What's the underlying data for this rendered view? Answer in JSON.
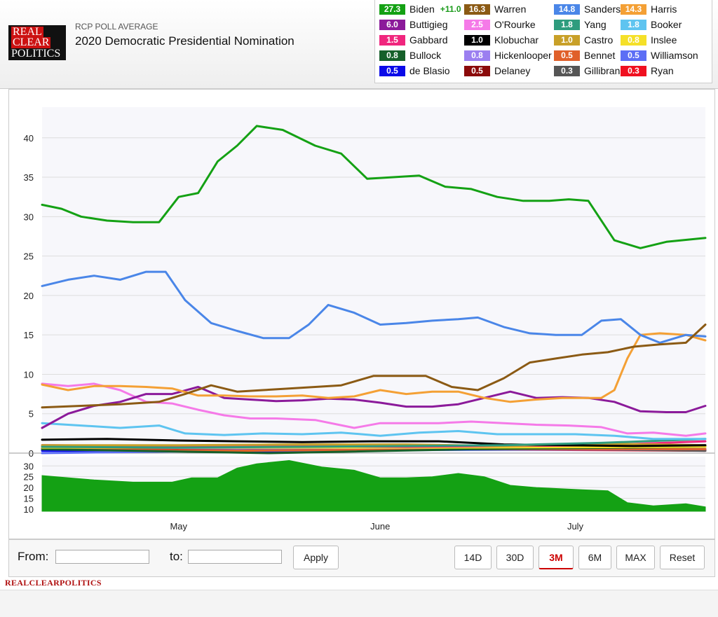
{
  "header": {
    "logo": {
      "line1": "REAL",
      "line2": "CLEAR",
      "line3": "POLITICS"
    },
    "subtitle": "RCP POLL AVERAGE",
    "title": "2020 Democratic Presidential Nomination"
  },
  "legend": [
    {
      "name": "Biden",
      "value": "27.3",
      "spread": "+11.0",
      "color": "#14a114",
      "text": "#ffffff"
    },
    {
      "name": "Warren",
      "value": "16.3",
      "color": "#8b5a14",
      "text": "#ffffff"
    },
    {
      "name": "Sanders",
      "value": "14.8",
      "color": "#4a86e8",
      "text": "#ffffff"
    },
    {
      "name": "Harris",
      "value": "14.3",
      "color": "#f4a035",
      "text": "#ffffff"
    },
    {
      "name": "Buttigieg",
      "value": "6.0",
      "color": "#8b1a9a",
      "text": "#ffffff"
    },
    {
      "name": "O'Rourke",
      "value": "2.5",
      "color": "#f57ae8",
      "text": "#ffffff"
    },
    {
      "name": "Yang",
      "value": "1.8",
      "color": "#2e9c7e",
      "text": "#ffffff"
    },
    {
      "name": "Booker",
      "value": "1.8",
      "color": "#5ec4f0",
      "text": "#ffffff"
    },
    {
      "name": "Gabbard",
      "value": "1.5",
      "color": "#f0267e",
      "text": "#ffffff"
    },
    {
      "name": "Klobuchar",
      "value": "1.0",
      "color": "#000000",
      "text": "#ffffff"
    },
    {
      "name": "Castro",
      "value": "1.0",
      "color": "#c8a028",
      "text": "#ffffff"
    },
    {
      "name": "Inslee",
      "value": "0.8",
      "color": "#f5e028",
      "text": "#ffffff"
    },
    {
      "name": "Bullock",
      "value": "0.8",
      "color": "#16602a",
      "text": "#ffffff"
    },
    {
      "name": "Hickenlooper",
      "value": "0.8",
      "color": "#9b7ff0",
      "text": "#ffffff"
    },
    {
      "name": "Bennet",
      "value": "0.5",
      "color": "#e0602a",
      "text": "#ffffff"
    },
    {
      "name": "Williamson",
      "value": "0.5",
      "color": "#5c6ef5",
      "text": "#ffffff"
    },
    {
      "name": "de Blasio",
      "value": "0.5",
      "color": "#0a0ae8",
      "text": "#ffffff"
    },
    {
      "name": "Delaney",
      "value": "0.5",
      "color": "#8b0a0a",
      "text": "#ffffff"
    },
    {
      "name": "Gillibrand",
      "value": "0.3",
      "color": "#555555",
      "text": "#ffffff"
    },
    {
      "name": "Ryan",
      "value": "0.3",
      "color": "#f01020",
      "text": "#ffffff"
    }
  ],
  "chart_data": {
    "type": "line",
    "x_range": [
      "2019-04-10",
      "2019-07-21"
    ],
    "x_ticks": [
      {
        "date": "2019-05-01",
        "label": "May"
      },
      {
        "date": "2019-06-01",
        "label": "June"
      },
      {
        "date": "2019-07-01",
        "label": "July"
      }
    ],
    "ylim": [
      0,
      43
    ],
    "y_ticks": [
      0,
      5,
      10,
      15,
      20,
      25,
      30,
      35,
      40
    ],
    "grid": true,
    "series": [
      {
        "name": "Biden",
        "color": "#14a114",
        "x": [
          "2019-04-10",
          "2019-04-13",
          "2019-04-16",
          "2019-04-20",
          "2019-04-24",
          "2019-04-28",
          "2019-05-01",
          "2019-05-04",
          "2019-05-07",
          "2019-05-10",
          "2019-05-13",
          "2019-05-17",
          "2019-05-22",
          "2019-05-26",
          "2019-05-30",
          "2019-06-03",
          "2019-06-07",
          "2019-06-11",
          "2019-06-15",
          "2019-06-19",
          "2019-06-23",
          "2019-06-27",
          "2019-06-30",
          "2019-07-03",
          "2019-07-07",
          "2019-07-11",
          "2019-07-15",
          "2019-07-21"
        ],
        "y": [
          31.5,
          31.0,
          30.0,
          29.5,
          29.3,
          29.3,
          32.5,
          33.0,
          37.0,
          39.0,
          41.5,
          41.0,
          39.0,
          38.0,
          34.8,
          35.0,
          35.2,
          33.8,
          33.5,
          32.5,
          32.0,
          32.0,
          32.2,
          32.0,
          27.0,
          26.0,
          26.8,
          27.3
        ]
      },
      {
        "name": "Warren",
        "color": "#8b5a14",
        "x": [
          "2019-04-10",
          "2019-04-16",
          "2019-04-22",
          "2019-04-28",
          "2019-05-02",
          "2019-05-06",
          "2019-05-10",
          "2019-05-14",
          "2019-05-18",
          "2019-05-22",
          "2019-05-26",
          "2019-05-31",
          "2019-06-04",
          "2019-06-08",
          "2019-06-12",
          "2019-06-16",
          "2019-06-20",
          "2019-06-24",
          "2019-06-28",
          "2019-07-02",
          "2019-07-06",
          "2019-07-10",
          "2019-07-14",
          "2019-07-18",
          "2019-07-21"
        ],
        "y": [
          5.8,
          6.0,
          6.2,
          6.5,
          7.5,
          8.6,
          7.8,
          8.0,
          8.2,
          8.4,
          8.6,
          9.8,
          9.8,
          9.8,
          8.4,
          8.0,
          9.5,
          11.5,
          12.0,
          12.5,
          12.8,
          13.5,
          13.8,
          14.0,
          16.3
        ]
      },
      {
        "name": "Sanders",
        "color": "#4a86e8",
        "x": [
          "2019-04-10",
          "2019-04-14",
          "2019-04-18",
          "2019-04-22",
          "2019-04-26",
          "2019-04-29",
          "2019-05-02",
          "2019-05-06",
          "2019-05-10",
          "2019-05-14",
          "2019-05-18",
          "2019-05-21",
          "2019-05-24",
          "2019-05-28",
          "2019-06-01",
          "2019-06-05",
          "2019-06-09",
          "2019-06-13",
          "2019-06-16",
          "2019-06-20",
          "2019-06-24",
          "2019-06-28",
          "2019-07-02",
          "2019-07-05",
          "2019-07-08",
          "2019-07-11",
          "2019-07-14",
          "2019-07-18",
          "2019-07-21"
        ],
        "y": [
          21.2,
          22.0,
          22.5,
          22.0,
          23.0,
          23.0,
          19.4,
          16.5,
          15.5,
          14.6,
          14.6,
          16.3,
          18.8,
          17.8,
          16.3,
          16.5,
          16.8,
          17.0,
          17.2,
          16.0,
          15.2,
          15.0,
          15.0,
          16.8,
          17.0,
          15.0,
          14.0,
          15.0,
          14.8
        ]
      },
      {
        "name": "Harris",
        "color": "#f4a035",
        "x": [
          "2019-04-10",
          "2019-04-14",
          "2019-04-18",
          "2019-04-22",
          "2019-04-26",
          "2019-04-30",
          "2019-05-04",
          "2019-05-08",
          "2019-05-12",
          "2019-05-16",
          "2019-05-20",
          "2019-05-24",
          "2019-05-28",
          "2019-06-01",
          "2019-06-05",
          "2019-06-09",
          "2019-06-13",
          "2019-06-17",
          "2019-06-21",
          "2019-06-25",
          "2019-06-29",
          "2019-07-02",
          "2019-07-05",
          "2019-07-07",
          "2019-07-09",
          "2019-07-11",
          "2019-07-14",
          "2019-07-18",
          "2019-07-21"
        ],
        "y": [
          8.7,
          8.0,
          8.5,
          8.5,
          8.4,
          8.2,
          7.3,
          7.3,
          7.2,
          7.2,
          7.3,
          7.0,
          7.2,
          8.0,
          7.5,
          7.8,
          7.8,
          7.0,
          6.5,
          6.8,
          7.0,
          7.0,
          7.0,
          8.0,
          12.0,
          15.0,
          15.2,
          15.0,
          14.3
        ]
      },
      {
        "name": "Buttigieg",
        "color": "#8b1a9a",
        "x": [
          "2019-04-10",
          "2019-04-14",
          "2019-04-18",
          "2019-04-22",
          "2019-04-26",
          "2019-04-30",
          "2019-05-04",
          "2019-05-08",
          "2019-05-12",
          "2019-05-16",
          "2019-05-20",
          "2019-05-24",
          "2019-05-28",
          "2019-06-01",
          "2019-06-05",
          "2019-06-09",
          "2019-06-13",
          "2019-06-17",
          "2019-06-21",
          "2019-06-25",
          "2019-06-29",
          "2019-07-03",
          "2019-07-07",
          "2019-07-11",
          "2019-07-15",
          "2019-07-18",
          "2019-07-21"
        ],
        "y": [
          3.2,
          5.0,
          6.0,
          6.5,
          7.5,
          7.5,
          8.4,
          7.0,
          6.8,
          6.6,
          6.7,
          6.9,
          6.8,
          6.4,
          5.9,
          5.9,
          6.2,
          7.0,
          7.8,
          7.0,
          7.1,
          7.0,
          6.5,
          5.3,
          5.2,
          5.2,
          6.0
        ]
      },
      {
        "name": "O'Rourke",
        "color": "#f57ae8",
        "x": [
          "2019-04-10",
          "2019-04-14",
          "2019-04-18",
          "2019-04-22",
          "2019-04-26",
          "2019-04-30",
          "2019-05-04",
          "2019-05-08",
          "2019-05-12",
          "2019-05-16",
          "2019-05-22",
          "2019-05-28",
          "2019-06-01",
          "2019-06-05",
          "2019-06-10",
          "2019-06-15",
          "2019-06-20",
          "2019-06-25",
          "2019-06-30",
          "2019-07-05",
          "2019-07-09",
          "2019-07-13",
          "2019-07-18",
          "2019-07-21"
        ],
        "y": [
          8.8,
          8.5,
          8.8,
          8.0,
          6.5,
          6.3,
          5.5,
          4.8,
          4.4,
          4.4,
          4.2,
          3.2,
          3.8,
          3.8,
          3.8,
          4.0,
          3.8,
          3.6,
          3.5,
          3.3,
          2.5,
          2.6,
          2.2,
          2.5
        ]
      },
      {
        "name": "Booker",
        "color": "#5ec4f0",
        "x": [
          "2019-04-10",
          "2019-04-16",
          "2019-04-22",
          "2019-04-28",
          "2019-05-02",
          "2019-05-08",
          "2019-05-14",
          "2019-05-20",
          "2019-05-26",
          "2019-06-01",
          "2019-06-07",
          "2019-06-13",
          "2019-06-19",
          "2019-06-25",
          "2019-07-01",
          "2019-07-07",
          "2019-07-13",
          "2019-07-21"
        ],
        "y": [
          3.8,
          3.5,
          3.2,
          3.5,
          2.5,
          2.3,
          2.5,
          2.4,
          2.6,
          2.2,
          2.6,
          2.8,
          2.4,
          2.4,
          2.4,
          2.2,
          1.8,
          1.8
        ]
      },
      {
        "name": "Yang",
        "color": "#2e9c7e",
        "x": [
          "2019-04-10",
          "2019-05-01",
          "2019-05-20",
          "2019-06-05",
          "2019-06-20",
          "2019-07-05",
          "2019-07-21"
        ],
        "y": [
          0.8,
          0.7,
          0.8,
          0.9,
          1.0,
          1.3,
          1.8
        ]
      },
      {
        "name": "Klobuchar",
        "color": "#000000",
        "x": [
          "2019-04-10",
          "2019-04-20",
          "2019-05-01",
          "2019-05-10",
          "2019-05-20",
          "2019-05-31",
          "2019-06-10",
          "2019-06-20",
          "2019-06-30",
          "2019-07-10",
          "2019-07-21"
        ],
        "y": [
          1.7,
          1.8,
          1.6,
          1.5,
          1.4,
          1.5,
          1.5,
          1.1,
          1.0,
          0.9,
          1.0
        ]
      },
      {
        "name": "Castro",
        "color": "#c8a028",
        "x": [
          "2019-04-10",
          "2019-05-01",
          "2019-05-20",
          "2019-06-05",
          "2019-06-20",
          "2019-07-05",
          "2019-07-21"
        ],
        "y": [
          1.0,
          1.0,
          1.1,
          1.1,
          0.9,
          1.2,
          1.0
        ]
      },
      {
        "name": "Gabbard",
        "color": "#f0267e",
        "x": [
          "2019-04-10",
          "2019-05-01",
          "2019-05-20",
          "2019-06-05",
          "2019-06-20",
          "2019-07-05",
          "2019-07-21"
        ],
        "y": [
          1.0,
          0.9,
          0.9,
          0.8,
          0.9,
          1.0,
          1.5
        ]
      },
      {
        "name": "Inslee",
        "color": "#f5e028",
        "x": [
          "2019-04-10",
          "2019-05-10",
          "2019-06-10",
          "2019-07-21"
        ],
        "y": [
          0.7,
          0.7,
          0.7,
          0.8
        ]
      },
      {
        "name": "Bullock",
        "color": "#16602a",
        "x": [
          "2019-04-10",
          "2019-05-15",
          "2019-06-15",
          "2019-07-21"
        ],
        "y": [
          0.5,
          0.0,
          0.5,
          0.8
        ]
      },
      {
        "name": "Hickenlooper",
        "color": "#9b7ff0",
        "x": [
          "2019-04-10",
          "2019-05-10",
          "2019-06-10",
          "2019-07-21"
        ],
        "y": [
          0.8,
          0.6,
          0.7,
          0.8
        ]
      },
      {
        "name": "Bennet",
        "color": "#e0602a",
        "x": [
          "2019-04-10",
          "2019-05-10",
          "2019-06-10",
          "2019-07-21"
        ],
        "y": [
          0.5,
          0.3,
          0.5,
          0.5
        ]
      },
      {
        "name": "Williamson",
        "color": "#5c6ef5",
        "x": [
          "2019-04-10",
          "2019-05-10",
          "2019-06-10",
          "2019-07-21"
        ],
        "y": [
          0.0,
          0.3,
          0.4,
          0.5
        ]
      },
      {
        "name": "de Blasio",
        "color": "#0a0ae8",
        "x": [
          "2019-04-10",
          "2019-05-16",
          "2019-06-10",
          "2019-07-21"
        ],
        "y": [
          0.3,
          0.2,
          0.7,
          0.5
        ]
      },
      {
        "name": "Delaney",
        "color": "#8b0a0a",
        "x": [
          "2019-04-10",
          "2019-05-10",
          "2019-06-10",
          "2019-07-21"
        ],
        "y": [
          0.5,
          0.4,
          0.5,
          0.5
        ]
      },
      {
        "name": "Gillibrand",
        "color": "#555555",
        "x": [
          "2019-04-10",
          "2019-05-10",
          "2019-06-10",
          "2019-07-21"
        ],
        "y": [
          1.0,
          0.8,
          0.7,
          0.3
        ]
      },
      {
        "name": "Ryan",
        "color": "#f01020",
        "x": [
          "2019-04-10",
          "2019-05-10",
          "2019-06-10",
          "2019-07-21"
        ],
        "y": [
          0.6,
          0.5,
          0.5,
          0.3
        ]
      }
    ],
    "spread": {
      "type": "area",
      "color": "#14a114",
      "y_ticks": [
        10,
        15,
        20,
        25,
        30
      ],
      "ylim": [
        9,
        33
      ],
      "x": [
        "2019-04-10",
        "2019-04-18",
        "2019-04-24",
        "2019-04-30",
        "2019-05-03",
        "2019-05-07",
        "2019-05-10",
        "2019-05-13",
        "2019-05-18",
        "2019-05-23",
        "2019-05-28",
        "2019-06-01",
        "2019-06-05",
        "2019-06-09",
        "2019-06-13",
        "2019-06-17",
        "2019-06-21",
        "2019-06-25",
        "2019-07-02",
        "2019-07-06",
        "2019-07-09",
        "2019-07-13",
        "2019-07-18",
        "2019-07-21"
      ],
      "y": [
        25.5,
        23.5,
        22.5,
        22.5,
        24.5,
        24.5,
        29.0,
        31.0,
        32.5,
        29.5,
        28.0,
        24.5,
        24.5,
        25.0,
        26.5,
        25.0,
        21.0,
        20.0,
        19.0,
        18.5,
        13.0,
        11.5,
        12.5,
        11.0
      ]
    }
  },
  "controls": {
    "from_label": "From:",
    "from_value": "",
    "to_label": "to:",
    "to_value": "",
    "apply": "Apply",
    "ranges": [
      "14D",
      "30D",
      "3M",
      "6M",
      "MAX"
    ],
    "active_range": "3M",
    "reset": "Reset"
  },
  "footer": "REALCLEARPOLITICS"
}
